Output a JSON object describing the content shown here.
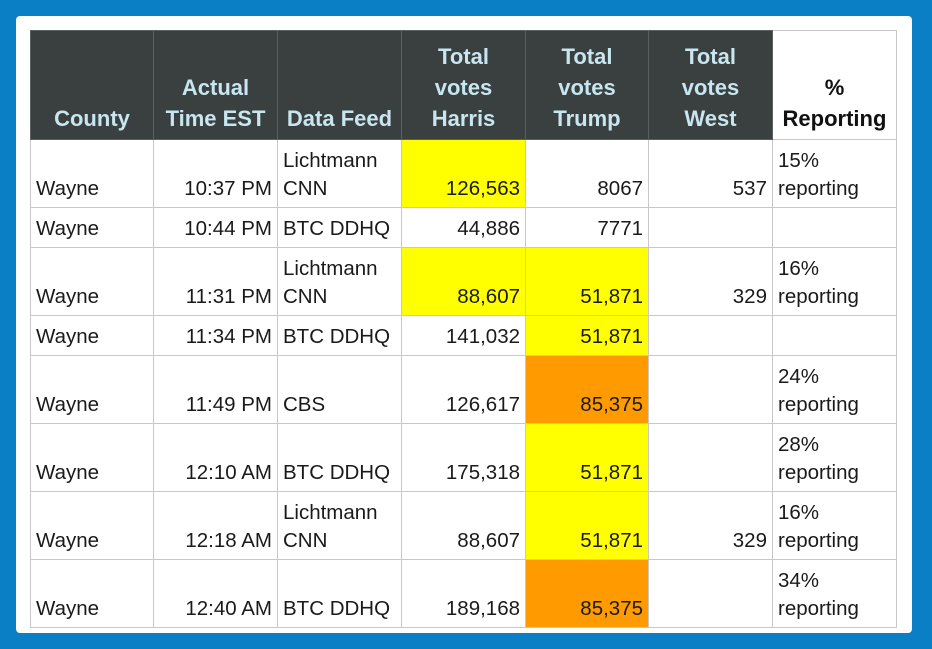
{
  "table": {
    "headers": [
      [
        "County"
      ],
      [
        "Actual",
        "Time EST"
      ],
      [
        "Data Feed"
      ],
      [
        "Total",
        "votes",
        "Harris"
      ],
      [
        "Total",
        "votes",
        "Trump"
      ],
      [
        "Total",
        "votes",
        "West"
      ],
      [
        "%",
        "Reporting"
      ]
    ],
    "rows": [
      {
        "county": "Wayne",
        "time": "10:37 PM",
        "feed": [
          "Lichtmann",
          "CNN"
        ],
        "harris": "126,563",
        "trump": "8067",
        "west": "537",
        "pct": [
          "15%",
          "reporting"
        ],
        "harris_hl": "yellow",
        "trump_hl": "",
        "tall": true
      },
      {
        "county": "Wayne",
        "time": "10:44 PM",
        "feed": [
          "BTC DDHQ"
        ],
        "harris": "44,886",
        "trump": "7771",
        "west": "",
        "pct": [],
        "harris_hl": "",
        "trump_hl": "",
        "tall": false
      },
      {
        "county": "Wayne",
        "time": "11:31 PM",
        "feed": [
          "Lichtmann",
          "CNN"
        ],
        "harris": "88,607",
        "trump": "51,871",
        "west": "329",
        "pct": [
          "16%",
          "reporting"
        ],
        "harris_hl": "yellow",
        "trump_hl": "yellow",
        "tall": true
      },
      {
        "county": "Wayne",
        "time": "11:34 PM",
        "feed": [
          "BTC DDHQ"
        ],
        "harris": "141,032",
        "trump": "51,871",
        "west": "",
        "pct": [],
        "harris_hl": "",
        "trump_hl": "yellow",
        "tall": false
      },
      {
        "county": "Wayne",
        "time": "11:49 PM",
        "feed": [
          "CBS"
        ],
        "harris": "126,617",
        "trump": "85,375",
        "west": "",
        "pct": [
          "24%",
          "reporting"
        ],
        "harris_hl": "",
        "trump_hl": "orange",
        "tall": true
      },
      {
        "county": "Wayne",
        "time": "12:10 AM",
        "feed": [
          "BTC DDHQ"
        ],
        "harris": "175,318",
        "trump": "51,871",
        "west": "",
        "pct": [
          "28%",
          "reporting"
        ],
        "harris_hl": "",
        "trump_hl": "yellow",
        "tall": true
      },
      {
        "county": "Wayne",
        "time": "12:18 AM",
        "feed": [
          "Lichtmann",
          "CNN"
        ],
        "harris": "88,607",
        "trump": "51,871",
        "west": "329",
        "pct": [
          "16%",
          "reporting"
        ],
        "harris_hl": "",
        "trump_hl": "yellow",
        "tall": true
      },
      {
        "county": "Wayne",
        "time": "12:40 AM",
        "feed": [
          "BTC DDHQ"
        ],
        "harris": "189,168",
        "trump": "85,375",
        "west": "",
        "pct": [
          "34%",
          "reporting"
        ],
        "harris_hl": "",
        "trump_hl": "orange",
        "tall": true
      }
    ]
  },
  "colors": {
    "frame": "#0a7fc6",
    "header_bg": "#3a3f3f",
    "header_text": "#c8e6f0",
    "highlight_yellow": "#ffff00",
    "highlight_orange": "#ff9a00"
  }
}
